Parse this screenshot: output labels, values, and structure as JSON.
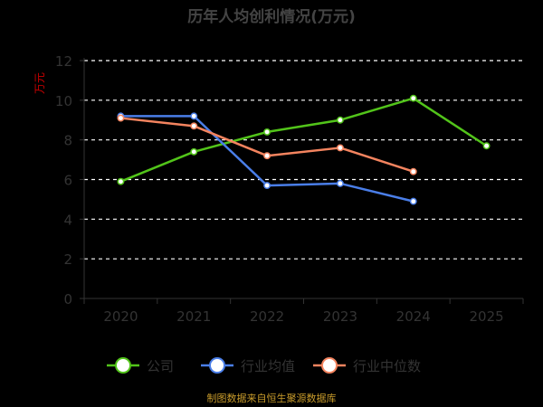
{
  "chart_data": {
    "type": "line",
    "title": "历年人均创利情况(万元)",
    "ylabel": "万元",
    "xlabel": "",
    "categories": [
      "2020",
      "2021",
      "2022",
      "2023",
      "2024",
      "2025"
    ],
    "ylim": [
      0,
      12
    ],
    "yticks": [
      0,
      2,
      4,
      6,
      8,
      10,
      12
    ],
    "grid": true,
    "legend_position": "bottom",
    "series": [
      {
        "name": "公司",
        "values": [
          5.9,
          7.4,
          8.4,
          9.0,
          10.1,
          7.7
        ],
        "color": "#52c41a"
      },
      {
        "name": "行业均值",
        "values": [
          9.2,
          9.2,
          5.7,
          5.8,
          4.9,
          null
        ],
        "color": "#4a7ee8"
      },
      {
        "name": "行业中位数",
        "values": [
          9.1,
          8.7,
          7.2,
          7.6,
          6.4,
          null
        ],
        "color": "#f4845f"
      }
    ]
  },
  "source_note": "制图数据来自恒生聚源数据库"
}
